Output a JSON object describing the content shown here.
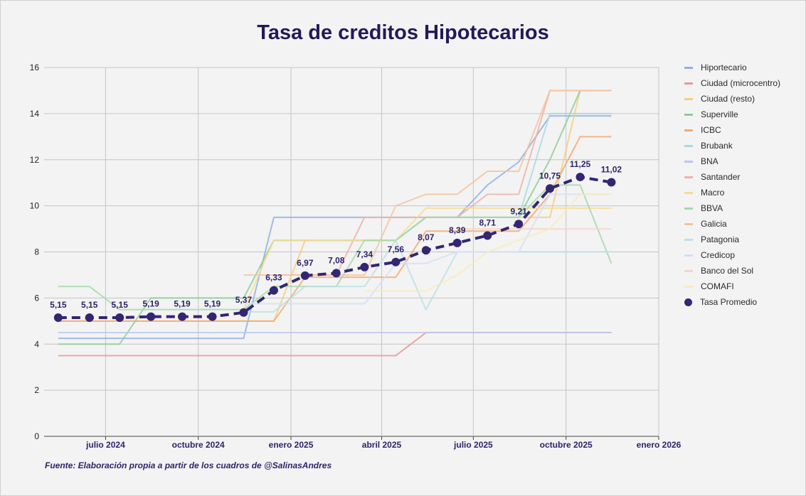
{
  "chart_data": {
    "type": "line",
    "title": "Tasa de creditos Hipotecarios",
    "source": "Fuente: Elaboración propia a partir de los cuadros de @SalinasAndres",
    "ylim": [
      0,
      16
    ],
    "yticks": [
      "0",
      "2",
      "4",
      "6",
      "8",
      "10",
      "12",
      "14",
      "16"
    ],
    "xlim": [
      "2024-05-01",
      "2026-01-01"
    ],
    "xticks": [
      {
        "date": "2024-07-01",
        "label": "julio 2024"
      },
      {
        "date": "2024-10-01",
        "label": "octubre 2024"
      },
      {
        "date": "2025-01-01",
        "label": "enero 2025"
      },
      {
        "date": "2025-04-01",
        "label": "abril 2025"
      },
      {
        "date": "2025-07-01",
        "label": "julio 2025"
      },
      {
        "date": "2025-10-01",
        "label": "octubre 2025"
      },
      {
        "date": "2026-01-01",
        "label": "enero 2026"
      }
    ],
    "x": [
      "2024-05-15",
      "2024-06-15",
      "2024-07-15",
      "2024-08-15",
      "2024-09-15",
      "2024-10-15",
      "2024-11-15",
      "2024-12-15",
      "2025-01-15",
      "2025-02-15",
      "2025-03-15",
      "2025-04-15",
      "2025-05-15",
      "2025-06-15",
      "2025-07-15",
      "2025-08-15",
      "2025-09-15",
      "2025-10-15",
      "2025-11-15",
      "2025-12-15"
    ],
    "grid": true,
    "legend_position": "right",
    "series": [
      {
        "name": "Hiportecario",
        "color": "#8fb0e6",
        "values": [
          4.25,
          4.25,
          4.25,
          4.25,
          4.25,
          4.25,
          4.25,
          9.5,
          9.5,
          9.5,
          9.5,
          9.5,
          9.5,
          9.5,
          10.9,
          11.9,
          13.9,
          13.9,
          13.9,
          null
        ]
      },
      {
        "name": "Ciudad (microcentro)",
        "color": "#e99a90",
        "values": [
          3.5,
          3.5,
          3.5,
          3.5,
          3.5,
          3.5,
          3.5,
          3.5,
          3.5,
          3.5,
          3.5,
          3.5,
          4.5,
          4.5,
          4.5,
          4.5,
          4.5,
          4.5,
          4.5,
          null
        ]
      },
      {
        "name": "Ciudad (resto)",
        "color": "#f3cf7c",
        "values": [
          5.0,
          5.0,
          5.0,
          5.0,
          5.0,
          5.0,
          5.0,
          5.0,
          8.5,
          8.5,
          8.5,
          8.5,
          9.5,
          9.5,
          9.5,
          9.5,
          9.5,
          15.0,
          15.0,
          null
        ]
      },
      {
        "name": "Superville",
        "color": "#8fcc99",
        "values": [
          4.0,
          4.0,
          4.0,
          6.0,
          6.0,
          6.0,
          6.0,
          8.5,
          8.5,
          8.5,
          8.5,
          8.5,
          9.5,
          9.5,
          9.5,
          9.5,
          12.0,
          15.0,
          null,
          null
        ]
      },
      {
        "name": "ICBC",
        "color": "#f2aa70",
        "values": [
          5.0,
          5.0,
          5.0,
          5.0,
          5.0,
          5.0,
          5.0,
          5.0,
          6.9,
          6.9,
          6.9,
          6.9,
          8.9,
          8.9,
          8.9,
          8.9,
          10.5,
          13.0,
          13.0,
          null
        ]
      },
      {
        "name": "Brubank",
        "color": "#a8d9e3",
        "values": [
          null,
          null,
          null,
          null,
          null,
          null,
          null,
          null,
          8.5,
          8.5,
          8.5,
          8.5,
          9.5,
          9.5,
          9.5,
          9.5,
          14.0,
          14.0,
          14.0,
          null
        ]
      },
      {
        "name": "BNA",
        "color": "#b7c8ee",
        "values": [
          4.5,
          4.5,
          4.5,
          4.5,
          4.5,
          4.5,
          4.5,
          4.5,
          4.5,
          4.5,
          4.5,
          4.5,
          4.5,
          4.5,
          4.5,
          4.5,
          4.5,
          4.5,
          4.5,
          null
        ]
      },
      {
        "name": "Santander",
        "color": "#f0b2a8",
        "values": [
          null,
          null,
          null,
          null,
          null,
          null,
          null,
          7.0,
          7.0,
          7.0,
          9.5,
          9.5,
          9.5,
          9.5,
          10.5,
          10.5,
          15.0,
          15.0,
          15.0,
          null
        ]
      },
      {
        "name": "Macro",
        "color": "#f7dc8e",
        "values": [
          null,
          null,
          null,
          null,
          null,
          null,
          5.5,
          8.5,
          8.5,
          8.5,
          8.5,
          8.5,
          9.9,
          9.9,
          9.9,
          9.9,
          9.9,
          9.9,
          9.9,
          null
        ]
      },
      {
        "name": "BBVA",
        "color": "#a5d8ac",
        "values": [
          6.5,
          6.5,
          5.5,
          5.5,
          5.5,
          5.5,
          5.5,
          6.5,
          6.5,
          6.5,
          8.5,
          8.5,
          9.5,
          9.5,
          9.5,
          9.5,
          10.9,
          10.9,
          7.5,
          null
        ]
      },
      {
        "name": "Galicia",
        "color": "#f4c39c",
        "values": [
          null,
          null,
          null,
          null,
          null,
          null,
          7.0,
          7.0,
          7.0,
          7.0,
          7.0,
          10.0,
          10.5,
          10.5,
          11.5,
          11.5,
          15.0,
          15.0,
          15.0,
          null
        ]
      },
      {
        "name": "Patagonia",
        "color": "#b9e2e4",
        "values": [
          null,
          null,
          null,
          null,
          null,
          null,
          5.4,
          5.4,
          6.5,
          6.5,
          6.5,
          8.5,
          5.5,
          8.0,
          8.0,
          8.0,
          8.0,
          8.0,
          8.0,
          null
        ]
      },
      {
        "name": "Credicop",
        "color": "#d5dff4",
        "values": [
          null,
          null,
          null,
          null,
          null,
          null,
          5.75,
          5.75,
          5.75,
          5.75,
          5.75,
          7.5,
          7.5,
          8.0,
          8.0,
          8.0,
          10.5,
          10.5,
          10.5,
          null
        ]
      },
      {
        "name": "Banco del Sol",
        "color": "#f5d3cf",
        "values": [
          null,
          null,
          null,
          null,
          null,
          null,
          null,
          null,
          null,
          null,
          null,
          null,
          null,
          9.0,
          9.0,
          9.0,
          9.0,
          9.0,
          9.0,
          null
        ]
      },
      {
        "name": "COMAFI",
        "color": "#f8ebb8",
        "values": [
          null,
          null,
          null,
          null,
          null,
          null,
          null,
          null,
          null,
          null,
          6.3,
          6.3,
          6.3,
          7.0,
          8.0,
          8.5,
          9.0,
          10.5,
          10.5,
          null
        ]
      },
      {
        "name": "Tasa Promedio",
        "color": "#332672",
        "style": "dashed-with-markers",
        "values": [
          5.15,
          5.15,
          5.15,
          5.19,
          5.19,
          5.19,
          5.37,
          6.33,
          6.97,
          7.08,
          7.34,
          7.56,
          8.07,
          8.39,
          8.71,
          9.21,
          10.75,
          11.25,
          11.02,
          null
        ],
        "labels": [
          "5,15",
          "5,15",
          "5,15",
          "5,19",
          "5,19",
          "5,19",
          "5,37",
          "6,33",
          "6,97",
          "7,08",
          "7,34",
          "7,56",
          "8,07",
          "8,39",
          "8,71",
          "9,21",
          "10,75",
          "11,25",
          "11,02",
          null
        ]
      }
    ]
  }
}
